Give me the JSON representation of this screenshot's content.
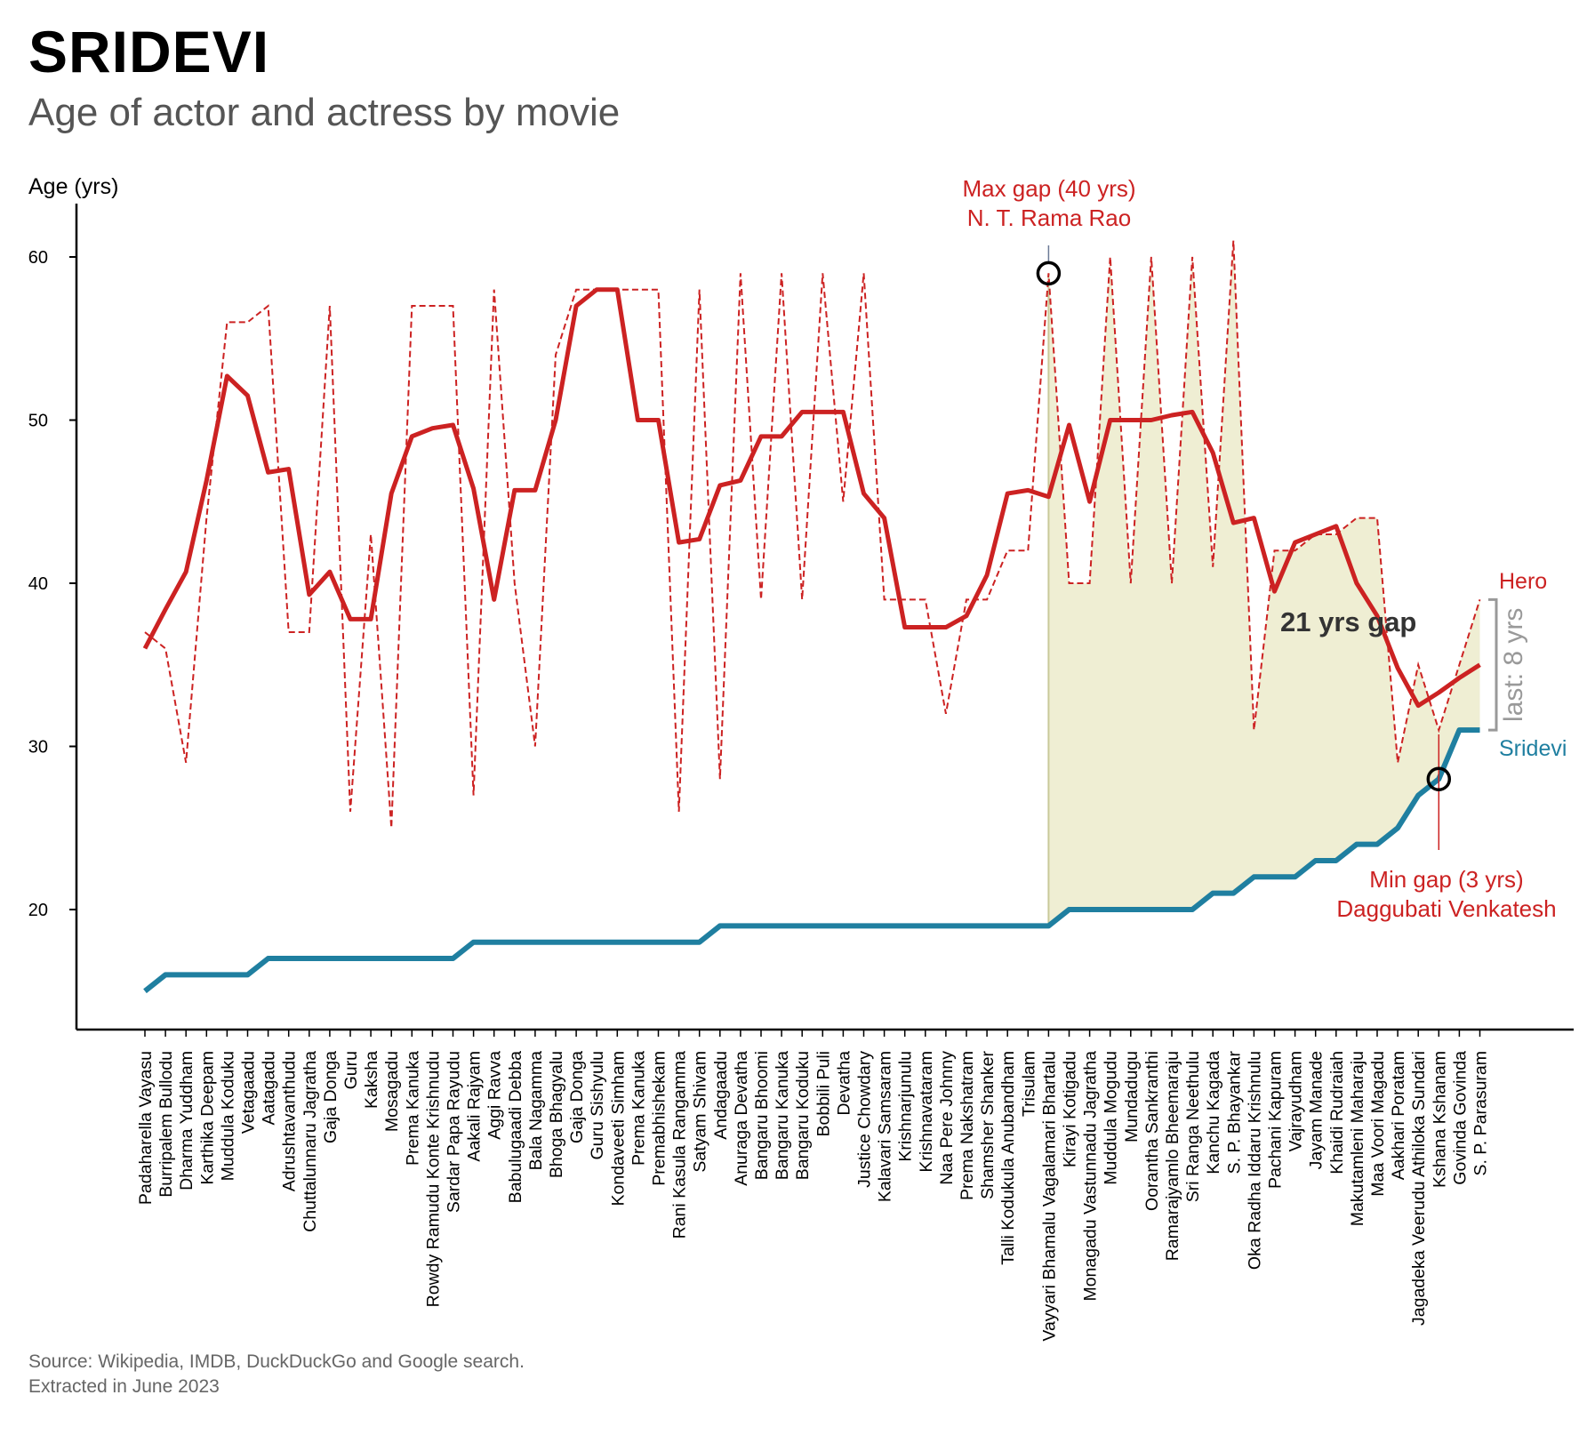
{
  "title": "SRIDEVI",
  "subtitle": "Age of actor and actress by movie",
  "source_lines": [
    "Source: Wikipedia, IMDB, DuckDuckGo and Google search.",
    "Extracted in June 2023"
  ],
  "chart_data": {
    "type": "line",
    "ylabel": "Age (yrs)",
    "yticks": [
      20,
      30,
      40,
      50,
      60
    ],
    "categories": [
      "Padaharella Vayasu",
      "Burripalem Bullodu",
      "Dharma Yuddham",
      "Karthika Deepam",
      "Muddula Koduku",
      "Vetagaadu",
      "Aatagadu",
      "Adrushtavanthudu",
      "Chuttalunnaru Jagratha",
      "Gaja Donga",
      "Guru",
      "Kaksha",
      "Mosagadu",
      "Prema Kanuka",
      "Rowdy Ramudu Konte Krishnudu",
      "Sardar Papa Rayudu",
      "Aakali Rajyam",
      "Aggi Ravva",
      "Babulugaadi Debba",
      "Bala Nagamma",
      "Bhoga Bhagyalu",
      "Gaja Donga",
      "Guru Sishyulu",
      "Kondaveeti Simham",
      "Prema Kanuka",
      "Premabhishekam",
      "Rani Kasula Rangamma",
      "Satyam Shivam",
      "Andagaadu",
      "Anuraga Devatha",
      "Bangaru Bhoomi",
      "Bangaru Kanuka",
      "Bangaru Koduku",
      "Bobbili Puli",
      "Devatha",
      "Justice Chowdary",
      "Kalavari Samsaram",
      "Krishnarjunulu",
      "Krishnavataram",
      "Naa Pere Johnny",
      "Prema Nakshatram",
      "Shamsher Shanker",
      "Talli Kodukula Anubandham",
      "Trisulam",
      "Vayyari Bhamalu Vagalamari Bhartalu",
      "Kirayi Kotigadu",
      "Monagadu Vastunnadu Jagratha",
      "Muddula Mogudu",
      "Mundadugu",
      "Oorantha Sankranthi",
      "Ramarajyamlo Bheemaraju",
      "Sri Ranga Neethulu",
      "Kanchu Kagada",
      "S. P. Bhayankar",
      "Oka Radha Iddaru Krishnulu",
      "Pachani Kapuram",
      "Vajrayudham",
      "Jayam Manade",
      "Khaidi Rudraiah",
      "Makutamleni Maharaju",
      "Maa Voori Magadu",
      "Aakhari Poratam",
      "Jagadeka Veerudu Athiloka Sundari",
      "Kshana Kshanam",
      "Govinda Govinda",
      "S. P. Parasuram"
    ],
    "series": [
      {
        "name": "Hero",
        "color": "#cc2222",
        "values": [
          37,
          36,
          29,
          44,
          56,
          56,
          57,
          37,
          37,
          57,
          26,
          43,
          25,
          57,
          57,
          57,
          27,
          58,
          40,
          30,
          54,
          58,
          58,
          58,
          58,
          58,
          26,
          58,
          28,
          59,
          39,
          59,
          39,
          59,
          45,
          59,
          39,
          39,
          39,
          32,
          39,
          39,
          42,
          42,
          59,
          40,
          40,
          60,
          40,
          60,
          40,
          60,
          41,
          61,
          31,
          42,
          42,
          43,
          43,
          44,
          44,
          29,
          35,
          31,
          35,
          39
        ],
        "smoothed": [
          36,
          38.4,
          40.7,
          46.3,
          52.7,
          51.5,
          46.8,
          47,
          39.3,
          40.7,
          37.8,
          37.8,
          45.5,
          49,
          49.5,
          49.7,
          45.8,
          39,
          45.7,
          45.7,
          50,
          57,
          58,
          58,
          50,
          50,
          42.5,
          42.7,
          46,
          46.3,
          49,
          49,
          50.5,
          50.5,
          50.5,
          45.5,
          44,
          37.3,
          37.3,
          37.3,
          38,
          40.5,
          45.5,
          45.7,
          45.3,
          49.7,
          45,
          50,
          50,
          50,
          50.3,
          50.5,
          48,
          43.7,
          44,
          39.5,
          42.5,
          43,
          43.5,
          40,
          38,
          34.8,
          32.5,
          33.3,
          34.2,
          35
        ]
      },
      {
        "name": "Sridevi",
        "color": "#1f7fa0",
        "values": [
          15,
          16,
          16,
          16,
          16,
          16,
          17,
          17,
          17,
          17,
          17,
          17,
          17,
          17,
          17,
          17,
          18,
          18,
          18,
          18,
          18,
          18,
          18,
          18,
          18,
          18,
          18,
          18,
          19,
          19,
          19,
          19,
          19,
          19,
          19,
          19,
          19,
          19,
          19,
          19,
          19,
          19,
          19,
          19,
          19,
          20,
          20,
          20,
          20,
          20,
          20,
          20,
          21,
          21,
          22,
          22,
          22,
          23,
          23,
          24,
          24,
          25,
          27,
          28,
          31,
          31
        ]
      }
    ],
    "shaded_start_index": 44,
    "annotations": {
      "max_gap": {
        "line1": "Max gap (40 yrs)",
        "line2": "N. T. Rama Rao",
        "index": 44,
        "value": 59
      },
      "min_gap": {
        "line1": "Min gap (3 yrs)",
        "line2": "Daggubati Venkatesh",
        "index": 63,
        "value": 28
      },
      "gap_label": "21 yrs gap",
      "last_label": "last: 8 yrs",
      "hero_label": "Hero",
      "actress_label": "Sridevi"
    }
  }
}
